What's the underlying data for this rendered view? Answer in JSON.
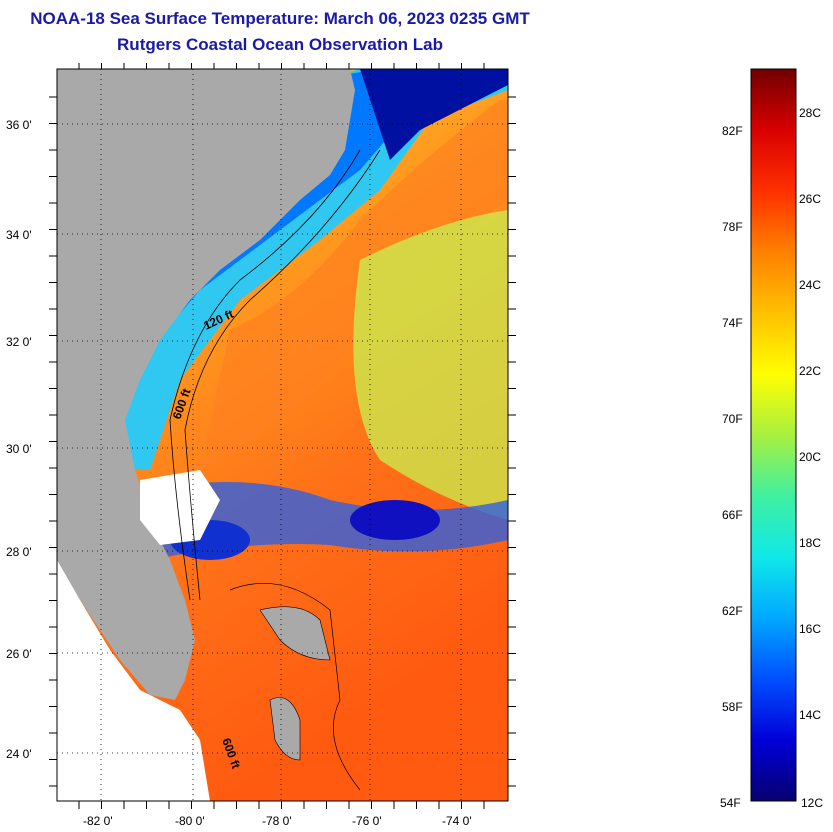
{
  "header": {
    "title": "NOAA-18 Sea Surface Temperature:  March 06, 2023 0235 GMT",
    "subtitle": "Rutgers Coastal Ocean Observation Lab"
  },
  "map": {
    "lon_ticks": [
      "-82 0'",
      "-80 0'",
      "-78 0'",
      "-76 0'",
      "-74 0'"
    ],
    "lat_ticks": [
      "36 0'",
      "34 0'",
      "32 0'",
      "30 0'",
      "28 0'",
      "26 0'",
      "24 0'"
    ],
    "contour_labels": [
      "120 ft",
      "600 ft",
      "600 ft"
    ],
    "colors": {
      "land": "#a9a9a9",
      "cloud": "#ffffff",
      "border": "#000000"
    }
  },
  "colorbar": {
    "fahrenheit_labels": [
      "82F",
      "78F",
      "74F",
      "70F",
      "66F",
      "62F",
      "58F",
      "54F"
    ],
    "celsius_labels": [
      "28C",
      "26C",
      "24C",
      "22C",
      "20C",
      "18C",
      "16C",
      "14C",
      "12C"
    ],
    "range_c": [
      12,
      29
    ],
    "gradient_stops": [
      "#08006e",
      "#0000d8",
      "#0050ff",
      "#00a8ff",
      "#10e8e8",
      "#40f0a0",
      "#a8f040",
      "#ffff00",
      "#ffc000",
      "#ff8000",
      "#ff3000",
      "#d80000",
      "#700000"
    ]
  }
}
